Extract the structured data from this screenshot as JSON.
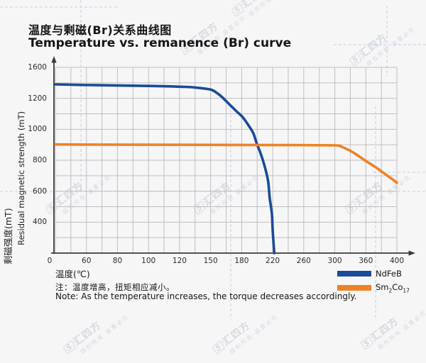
{
  "title": {
    "zh": "温度与剩磁(Br)关系曲线图",
    "en": "Temperature vs. remanence (Br) curve"
  },
  "watermark": {
    "logo_glyph": "5",
    "brand": "汇四方",
    "notice": "版权所有 盗重必究"
  },
  "chart_data": {
    "type": "line",
    "title": "Temperature vs. remanence (Br) curve",
    "title_zh": "温度与剩磁(Br)关系曲线图",
    "xlabel": "温度(℃)",
    "ylabel_zh": "剩磁强度(mT)",
    "ylabel_en": "Residual magnetic strength (mT)",
    "x_ticks": [
      0,
      60,
      80,
      100,
      120,
      150,
      180,
      220,
      260,
      300,
      360,
      400
    ],
    "y_ticks": [
      1600,
      1200,
      1000,
      800,
      600,
      400
    ],
    "y_origin": 0,
    "axis_note": "tick labels are evenly spaced (non-linear scale)",
    "grid": true,
    "legend_position": "bottom-right",
    "series": [
      {
        "name": "NdFeB",
        "color": "#1a4b96",
        "points": [
          [
            0,
            1380
          ],
          [
            60,
            1372
          ],
          [
            100,
            1360
          ],
          [
            120,
            1350
          ],
          [
            135,
            1340
          ],
          [
            150,
            1313
          ],
          [
            156,
            1270
          ],
          [
            161,
            1216
          ],
          [
            168,
            1162
          ],
          [
            175,
            1116
          ],
          [
            181,
            1080
          ],
          [
            189,
            1024
          ],
          [
            195,
            974
          ],
          [
            200,
            900
          ],
          [
            204,
            850
          ],
          [
            209,
            772
          ],
          [
            214,
            668
          ],
          [
            216,
            562
          ],
          [
            219,
            452
          ],
          [
            220,
            293
          ],
          [
            222,
            0
          ]
        ]
      },
      {
        "name": "Sm2Co17",
        "color": "#ef8226",
        "points": [
          [
            0,
            902
          ],
          [
            60,
            901
          ],
          [
            120,
            900
          ],
          [
            180,
            899
          ],
          [
            240,
            898
          ],
          [
            300,
            896
          ],
          [
            312,
            888
          ],
          [
            324,
            871
          ],
          [
            336,
            849
          ],
          [
            348,
            823
          ],
          [
            360,
            795
          ],
          [
            372,
            757
          ],
          [
            384,
            714
          ],
          [
            394,
            678
          ],
          [
            400,
            655
          ]
        ]
      }
    ]
  },
  "legend": {
    "items": [
      {
        "label": "NdFeB",
        "color": "#1a4b96"
      },
      {
        "label": "Sm2Co17",
        "parts": [
          "Sm",
          "2",
          "Co",
          "17"
        ],
        "color": "#ef8226"
      }
    ]
  },
  "notes": {
    "zh": "注：温度增高，扭矩相应减小。",
    "en": "Note: As the temperature increases, the torque decreases accordingly."
  },
  "colors": {
    "background": "#f6f6f7",
    "grid": "#bfbfc4",
    "axis": "#3a3a3a",
    "ndfeb": "#1a4b96",
    "sm2co17": "#ef8226",
    "guide_dash": "#b9c6de",
    "watermark": "#c2c6d3"
  }
}
